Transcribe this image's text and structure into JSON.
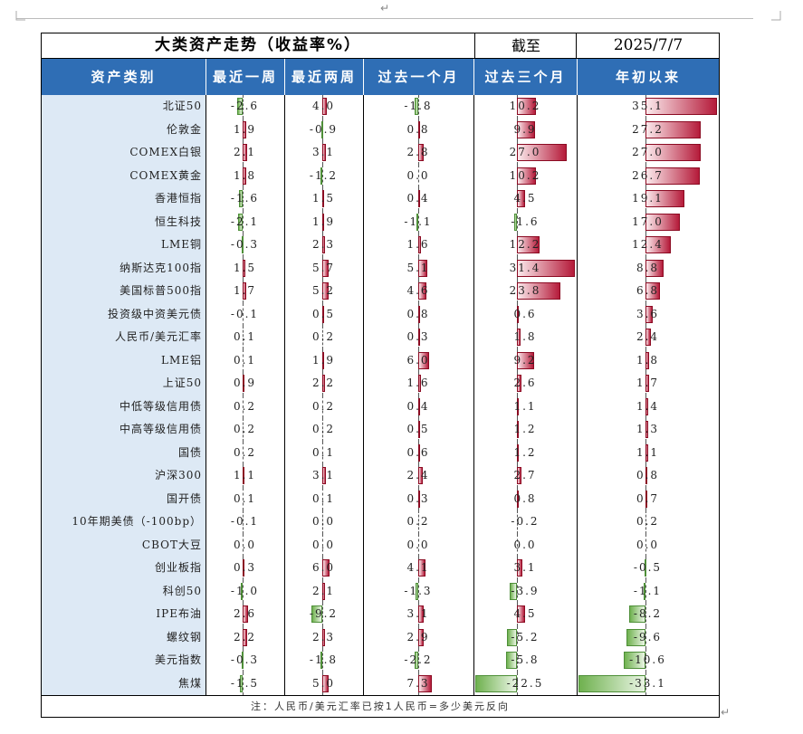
{
  "title": "大类资产走势（收益率%）",
  "as_of_label": "截至",
  "date": "2025/7/7",
  "headers": [
    "资产类别",
    "最近一周",
    "最近两周",
    "过去一个月",
    "过去三个月",
    "年初以来"
  ],
  "note": "注：人民币/美元汇率已按1人民币=多少美元反向",
  "cursor_mark": "↵",
  "rows": [
    {
      "name": "北证50",
      "values": [
        -2.6,
        4.0,
        -1.8,
        10.2,
        35.1
      ]
    },
    {
      "name": "伦敦金",
      "values": [
        1.9,
        -0.9,
        0.8,
        9.9,
        27.2
      ]
    },
    {
      "name": "COMEX白银",
      "values": [
        2.1,
        3.1,
        2.8,
        27.0,
        27.0
      ]
    },
    {
      "name": "COMEX黄金",
      "values": [
        1.8,
        -1.2,
        0.0,
        10.2,
        26.7
      ]
    },
    {
      "name": "香港恒指",
      "values": [
        -1.6,
        1.5,
        0.4,
        4.5,
        19.1
      ]
    },
    {
      "name": "恒生科技",
      "values": [
        -2.1,
        1.9,
        -1.1,
        -1.6,
        17.0
      ]
    },
    {
      "name": "LME铜",
      "values": [
        -0.3,
        2.3,
        1.6,
        12.2,
        12.4
      ]
    },
    {
      "name": "纳斯达克100指",
      "values": [
        1.5,
        5.7,
        5.1,
        31.4,
        8.8
      ]
    },
    {
      "name": "美国标普500指",
      "values": [
        1.7,
        5.2,
        4.6,
        23.8,
        6.8
      ]
    },
    {
      "name": "投资级中资美元债",
      "values": [
        -0.1,
        0.5,
        0.8,
        0.6,
        3.6
      ]
    },
    {
      "name": "人民币/美元汇率",
      "values": [
        0.1,
        0.2,
        0.3,
        1.8,
        2.4
      ]
    },
    {
      "name": "LME铝",
      "values": [
        0.1,
        1.9,
        6.0,
        9.2,
        1.8
      ]
    },
    {
      "name": "上证50",
      "values": [
        0.9,
        2.2,
        1.6,
        2.6,
        1.7
      ]
    },
    {
      "name": "中低等级信用债",
      "values": [
        0.2,
        0.2,
        0.4,
        1.1,
        1.4
      ]
    },
    {
      "name": "中高等级信用债",
      "values": [
        0.2,
        0.2,
        0.5,
        1.2,
        1.3
      ]
    },
    {
      "name": "国债",
      "values": [
        0.2,
        0.1,
        0.6,
        1.2,
        1.1
      ]
    },
    {
      "name": "沪深300",
      "values": [
        1.1,
        3.1,
        2.4,
        2.7,
        0.8
      ]
    },
    {
      "name": "国开债",
      "values": [
        0.1,
        0.1,
        0.3,
        0.8,
        0.7
      ]
    },
    {
      "name": "10年期美债（-100bp）",
      "values": [
        -0.1,
        0.0,
        0.2,
        -0.2,
        0.2
      ]
    },
    {
      "name": "CBOT大豆",
      "values": [
        0.0,
        0.0,
        0.0,
        0.0,
        0.0
      ]
    },
    {
      "name": "创业板指",
      "values": [
        0.3,
        6.0,
        4.1,
        3.1,
        -0.5
      ]
    },
    {
      "name": "科创50",
      "values": [
        -1.0,
        2.1,
        -1.3,
        -3.9,
        -1.1
      ]
    },
    {
      "name": "IPE布油",
      "values": [
        2.6,
        -9.2,
        3.1,
        4.5,
        -8.2
      ]
    },
    {
      "name": "螺纹钢",
      "values": [
        2.2,
        2.3,
        2.9,
        -5.2,
        -9.6
      ]
    },
    {
      "name": "美元指数",
      "values": [
        -0.3,
        -1.8,
        -2.2,
        -5.8,
        -10.6
      ]
    },
    {
      "name": "焦煤",
      "values": [
        -1.5,
        5.0,
        7.3,
        -22.5,
        -33.1
      ]
    }
  ]
}
